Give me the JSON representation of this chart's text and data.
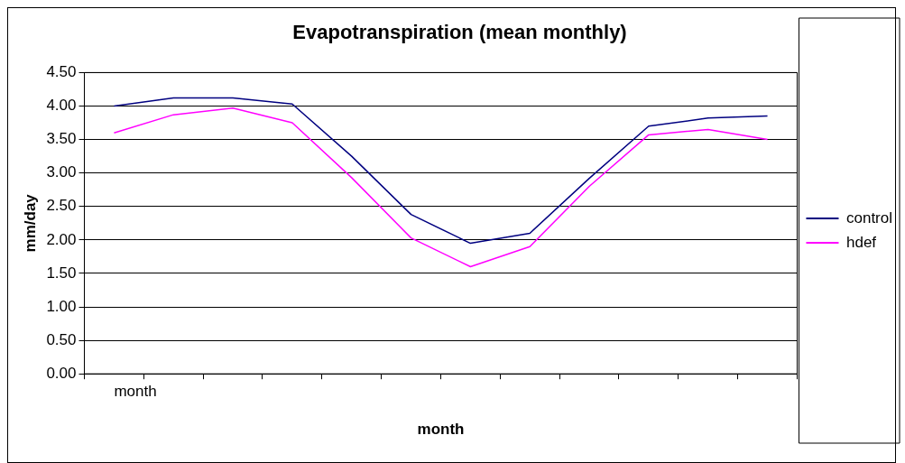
{
  "chart_data": {
    "type": "line",
    "title": "Evapotranspiration (mean monthly)",
    "xlabel": "month",
    "ylabel": "mm/day",
    "categories": [
      "month",
      null,
      null,
      null,
      null,
      null,
      null,
      null,
      null,
      null,
      null,
      null
    ],
    "series": [
      {
        "name": "control",
        "color": "#000080",
        "values": [
          4.0,
          4.12,
          4.12,
          4.03,
          3.25,
          2.38,
          1.95,
          2.1,
          2.92,
          3.7,
          3.82,
          3.85
        ]
      },
      {
        "name": "hdef",
        "color": "#ff00ff",
        "values": [
          3.6,
          3.87,
          3.97,
          3.75,
          2.93,
          2.03,
          1.6,
          1.9,
          2.8,
          3.57,
          3.65,
          3.5
        ]
      }
    ],
    "ylim": [
      0,
      4.5
    ],
    "yticks": [
      {
        "value": 0,
        "label": "0.00"
      },
      {
        "value": 0.5,
        "label": "0.50"
      },
      {
        "value": 1,
        "label": "1.00"
      },
      {
        "value": 1.5,
        "label": "1.50"
      },
      {
        "value": 2,
        "label": "2.00"
      },
      {
        "value": 2.5,
        "label": "2.50"
      },
      {
        "value": 3,
        "label": "3.00"
      },
      {
        "value": 3.5,
        "label": "3.50"
      },
      {
        "value": 4,
        "label": "4.00"
      },
      {
        "value": 4.5,
        "label": "4.50"
      }
    ],
    "grid": "y",
    "legend": "right",
    "marker": "none",
    "line_style": "solid"
  }
}
